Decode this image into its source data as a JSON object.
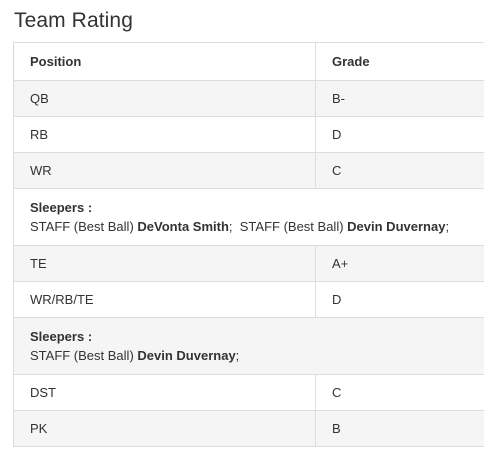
{
  "title": "Team Rating",
  "table": {
    "headers": {
      "position": "Position",
      "grade": "Grade"
    },
    "rows": [
      {
        "position": "QB",
        "grade": "B-"
      },
      {
        "position": "RB",
        "grade": "D"
      },
      {
        "position": "WR",
        "grade": "C"
      }
    ],
    "sleepers1": {
      "heading": "Sleepers :",
      "entries": [
        {
          "source": "STAFF (Best Ball)",
          "player": "DeVonta Smith",
          "sep": ";"
        },
        {
          "source": "STAFF (Best Ball)",
          "player": "Devin Duvernay",
          "sep": ";"
        }
      ]
    },
    "rows2": [
      {
        "position": "TE",
        "grade": "A+"
      },
      {
        "position": "WR/RB/TE",
        "grade": "D"
      }
    ],
    "sleepers2": {
      "heading": "Sleepers :",
      "entries": [
        {
          "source": "STAFF (Best Ball)",
          "player": "Devin Duvernay",
          "sep": ";"
        }
      ]
    },
    "rows3": [
      {
        "position": "DST",
        "grade": "C"
      },
      {
        "position": "PK",
        "grade": "B"
      }
    ]
  }
}
